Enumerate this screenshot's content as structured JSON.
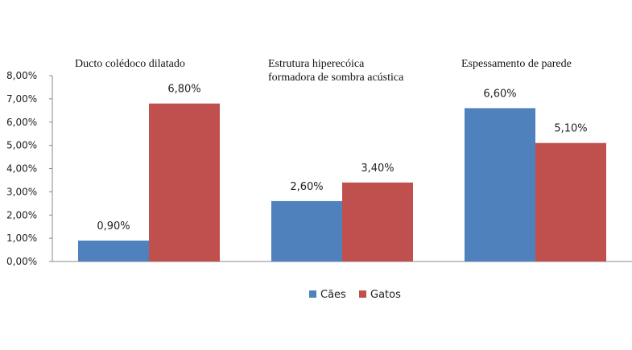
{
  "chart_data": {
    "type": "bar",
    "categories": [
      [
        "Ducto colédoco dilatado"
      ],
      [
        "Estrutura hiperecóica",
        "formadora de sombra acústica"
      ],
      [
        "Espessamento de parede"
      ]
    ],
    "series": [
      {
        "name": "Cães",
        "color": "#4f81bd",
        "values": [
          0.9,
          2.6,
          6.6
        ],
        "labels": [
          "0,90%",
          "2,60%",
          "6,60%"
        ]
      },
      {
        "name": "Gatos",
        "color": "#c0504d",
        "values": [
          6.8,
          3.4,
          5.1
        ],
        "labels": [
          "6,80%",
          "3,40%",
          "5,10%"
        ]
      }
    ],
    "ylim": [
      0,
      8
    ],
    "yticks": [
      0,
      1,
      2,
      3,
      4,
      5,
      6,
      7,
      8
    ],
    "ytick_labels": [
      "0,00%",
      "1,00%",
      "2,00%",
      "3,00%",
      "4,00%",
      "5,00%",
      "6,00%",
      "7,00%",
      "8,00%"
    ],
    "legend": "bottom-center",
    "grid": false
  }
}
